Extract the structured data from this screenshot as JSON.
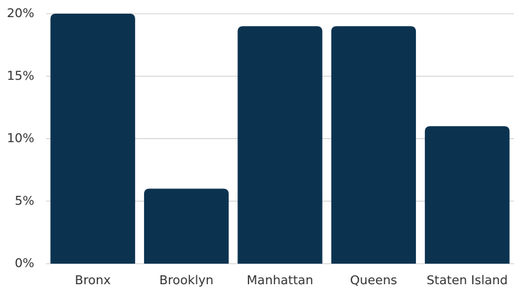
{
  "chart_data": {
    "type": "bar",
    "categories": [
      "Bronx",
      "Brooklyn",
      "Manhattan",
      "Queens",
      "Staten Island"
    ],
    "values": [
      20,
      6,
      19,
      19,
      11
    ],
    "color": "#0b3350",
    "ylim": [
      0,
      20
    ],
    "yticks": [
      {
        "value": 0,
        "label": "0%"
      },
      {
        "value": 5,
        "label": "5%"
      },
      {
        "value": 10,
        "label": "10%"
      },
      {
        "value": 15,
        "label": "15%"
      },
      {
        "value": 20,
        "label": "20%"
      }
    ],
    "grid": true
  }
}
